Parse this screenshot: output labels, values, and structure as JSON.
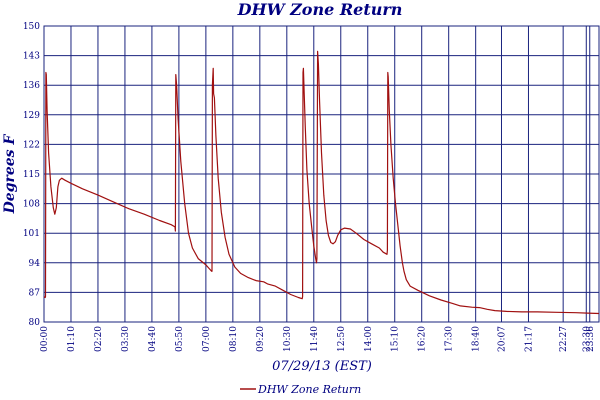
{
  "colors": {
    "grid": "#1a237e",
    "series": "#a01010",
    "text": "#000080"
  },
  "chart_data": {
    "type": "line",
    "title": "DHW Zone Return",
    "xlabel": "07/29/13 (EST)",
    "ylabel": "Degrees F",
    "ylim": [
      80,
      150
    ],
    "yticks": [
      80,
      87,
      94,
      101,
      108,
      115,
      122,
      129,
      136,
      143,
      150
    ],
    "xlim": [
      0,
      1440
    ],
    "xticks": [
      {
        "t": 0,
        "label": "00:00"
      },
      {
        "t": 70,
        "label": "01:10"
      },
      {
        "t": 140,
        "label": "02:20"
      },
      {
        "t": 210,
        "label": "03:30"
      },
      {
        "t": 280,
        "label": "04:40"
      },
      {
        "t": 350,
        "label": "05:50"
      },
      {
        "t": 420,
        "label": "07:00"
      },
      {
        "t": 490,
        "label": "08:10"
      },
      {
        "t": 560,
        "label": "09:20"
      },
      {
        "t": 630,
        "label": "10:30"
      },
      {
        "t": 700,
        "label": "11:40"
      },
      {
        "t": 770,
        "label": "12:50"
      },
      {
        "t": 840,
        "label": "14:00"
      },
      {
        "t": 910,
        "label": "15:10"
      },
      {
        "t": 980,
        "label": "16:20"
      },
      {
        "t": 1050,
        "label": "17:30"
      },
      {
        "t": 1120,
        "label": "18:40"
      },
      {
        "t": 1187,
        "label": "20:07"
      },
      {
        "t": 1257,
        "label": "21:17"
      },
      {
        "t": 1347,
        "label": "22:27"
      },
      {
        "t": 1407,
        "label": "23:30"
      },
      {
        "t": 1416,
        "label": "23:36"
      }
    ],
    "grid": true,
    "legend_position": "bottom-center",
    "series": [
      {
        "name": "DHW Zone Return",
        "color": "#a01010",
        "points": [
          [
            0,
            86
          ],
          [
            3,
            85.8
          ],
          [
            4,
            86
          ],
          [
            5,
            139
          ],
          [
            6,
            138.5
          ],
          [
            8,
            130
          ],
          [
            12,
            120
          ],
          [
            18,
            112
          ],
          [
            24,
            107
          ],
          [
            28,
            105.5
          ],
          [
            32,
            107
          ],
          [
            36,
            112
          ],
          [
            40,
            113.5
          ],
          [
            46,
            114
          ],
          [
            55,
            113.5
          ],
          [
            70,
            112.8
          ],
          [
            100,
            111.5
          ],
          [
            140,
            110
          ],
          [
            180,
            108.4
          ],
          [
            220,
            106.8
          ],
          [
            260,
            105.5
          ],
          [
            300,
            104
          ],
          [
            330,
            103
          ],
          [
            340,
            102.5
          ],
          [
            341,
            101.5
          ],
          [
            342,
            138.5
          ],
          [
            344,
            136
          ],
          [
            348,
            128
          ],
          [
            355,
            118
          ],
          [
            365,
            108
          ],
          [
            375,
            101
          ],
          [
            385,
            97.5
          ],
          [
            400,
            95
          ],
          [
            420,
            93.5
          ],
          [
            430,
            92.5
          ],
          [
            435,
            92
          ],
          [
            436,
            92
          ],
          [
            437,
            136
          ],
          [
            439,
            140
          ],
          [
            440,
            134
          ],
          [
            442,
            133
          ],
          [
            446,
            124
          ],
          [
            452,
            114
          ],
          [
            460,
            106
          ],
          [
            470,
            100
          ],
          [
            480,
            96
          ],
          [
            495,
            93
          ],
          [
            510,
            91.5
          ],
          [
            530,
            90.5
          ],
          [
            550,
            89.8
          ],
          [
            570,
            89.5
          ],
          [
            580,
            89
          ],
          [
            600,
            88.5
          ],
          [
            620,
            87.5
          ],
          [
            640,
            86.5
          ],
          [
            660,
            85.8
          ],
          [
            670,
            85.5
          ],
          [
            671,
            86
          ],
          [
            672,
            139
          ],
          [
            673,
            140
          ],
          [
            675,
            134
          ],
          [
            678,
            126
          ],
          [
            682,
            116
          ],
          [
            688,
            108
          ],
          [
            695,
            102
          ],
          [
            700,
            98
          ],
          [
            705,
            95
          ],
          [
            707,
            94
          ],
          [
            708,
            95
          ],
          [
            710,
            144
          ],
          [
            712,
            141
          ],
          [
            715,
            132
          ],
          [
            720,
            120
          ],
          [
            726,
            110
          ],
          [
            732,
            104
          ],
          [
            738,
            100.5
          ],
          [
            744,
            98.8
          ],
          [
            750,
            98.5
          ],
          [
            756,
            99
          ],
          [
            762,
            100.5
          ],
          [
            770,
            101.8
          ],
          [
            780,
            102.2
          ],
          [
            795,
            102
          ],
          [
            810,
            101
          ],
          [
            830,
            99.5
          ],
          [
            850,
            98.5
          ],
          [
            870,
            97.5
          ],
          [
            880,
            96.5
          ],
          [
            890,
            96
          ],
          [
            891,
            97
          ],
          [
            892,
            139
          ],
          [
            893,
            138
          ],
          [
            896,
            130
          ],
          [
            900,
            122
          ],
          [
            906,
            114
          ],
          [
            912,
            108
          ],
          [
            918,
            103
          ],
          [
            924,
            98
          ],
          [
            930,
            94
          ],
          [
            934,
            92
          ],
          [
            940,
            90
          ],
          [
            950,
            88.5
          ],
          [
            970,
            87.5
          ],
          [
            1000,
            86.2
          ],
          [
            1030,
            85.2
          ],
          [
            1060,
            84.4
          ],
          [
            1080,
            83.8
          ],
          [
            1110,
            83.5
          ],
          [
            1130,
            83.4
          ],
          [
            1150,
            83
          ],
          [
            1170,
            82.7
          ],
          [
            1200,
            82.5
          ],
          [
            1240,
            82.4
          ],
          [
            1280,
            82.4
          ],
          [
            1330,
            82.3
          ],
          [
            1380,
            82.2
          ],
          [
            1410,
            82.1
          ],
          [
            1440,
            82
          ]
        ]
      }
    ]
  }
}
